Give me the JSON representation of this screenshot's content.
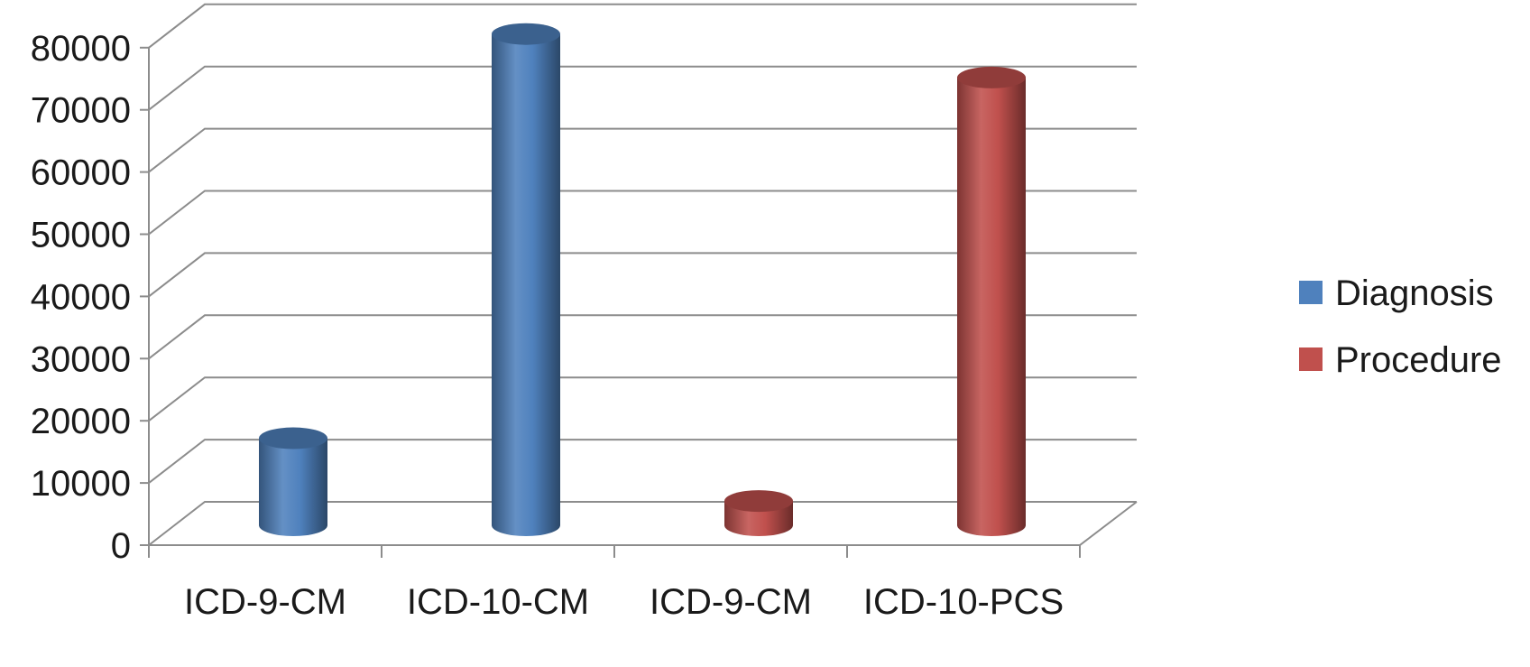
{
  "chart_data": {
    "type": "bar",
    "variant": "3d-cylinder",
    "title": "",
    "xlabel": "",
    "ylabel": "",
    "categories": [
      "ICD-9-CM",
      "ICD-10-CM",
      "ICD-9-CM",
      "ICD-10-PCS"
    ],
    "ylim": [
      0,
      80000
    ],
    "yticks": [
      0,
      10000,
      20000,
      30000,
      40000,
      50000,
      60000,
      70000,
      80000
    ],
    "grid": true,
    "legend_position": "right",
    "series": [
      {
        "name": "Diagnosis",
        "color": "#4f81bd",
        "values": [
          14000,
          79000,
          null,
          null
        ]
      },
      {
        "name": "Procedure",
        "color": "#c0504d",
        "values": [
          null,
          null,
          3900,
          72000
        ]
      }
    ]
  }
}
